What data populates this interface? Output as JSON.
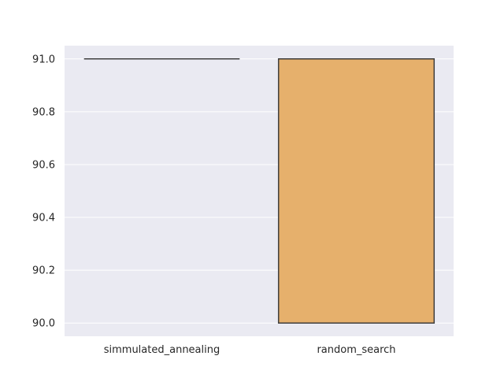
{
  "chart_data": {
    "type": "box",
    "categories": [
      "simmulated_annealing",
      "random_search"
    ],
    "boxes": [
      {
        "name": "simmulated_annealing",
        "min": 91.0,
        "q1": 91.0,
        "median": 91.0,
        "q3": 91.0,
        "max": 91.0,
        "color": "#4c72b0"
      },
      {
        "name": "random_search",
        "min": 90.0,
        "q1": 90.0,
        "median": 91.0,
        "q3": 91.0,
        "max": 91.0,
        "color": "#e6b06c"
      }
    ],
    "yticks": [
      90.0,
      90.2,
      90.4,
      90.6,
      90.8,
      91.0
    ],
    "ytick_labels": [
      "90.0",
      "90.2",
      "90.4",
      "90.6",
      "90.8",
      "91.0"
    ],
    "ylim": [
      89.95,
      91.05
    ],
    "grid": true,
    "background": "#eaeaf2",
    "edge_color": "#3f3f3f",
    "title": "",
    "xlabel": "",
    "ylabel": ""
  }
}
